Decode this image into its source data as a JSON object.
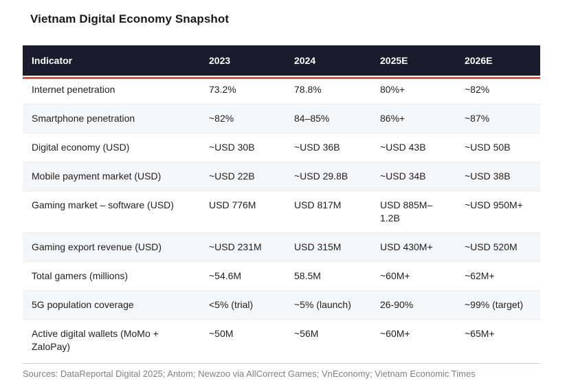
{
  "title": "Vietnam Digital Economy Snapshot",
  "footer": {
    "sources": "Sources: DataReportal Digital 2025; Antom; Newzoo via AllCorrect Games; VnEconomy; Vietnam Economic Times"
  },
  "colors": {
    "header_bg": "#1b1b2e",
    "accent_red_dark": "#b04238",
    "accent_red_light": "#e2695e",
    "stripe_row": "#f5f6f8"
  },
  "chart_data": {
    "type": "table",
    "title": "Vietnam Digital Economy Snapshot",
    "columns": [
      "Indicator",
      "2023",
      "2024",
      "2025E",
      "2026E"
    ],
    "rows": [
      [
        "Internet penetration",
        "73.2%",
        "78.8%",
        "80%+",
        "~82%"
      ],
      [
        "Smartphone penetration",
        "~82%",
        "84–85%",
        "86%+",
        "~87%"
      ],
      [
        "Digital economy (USD)",
        "~USD 30B",
        "~USD 36B",
        "~USD 43B",
        "~USD 50B"
      ],
      [
        "Mobile payment market (USD)",
        "~USD 22B",
        "~USD 29.8B",
        "~USD 34B",
        "~USD 38B"
      ],
      [
        "Gaming market – software (USD)",
        "USD 776M",
        "USD 817M",
        "USD 885M–1.2B",
        "~USD 950M+"
      ],
      [
        "Gaming export revenue (USD)",
        "~USD 231M",
        "USD 315M",
        "USD 430M+",
        "~USD 520M"
      ],
      [
        "Total gamers (millions)",
        "~54.6M",
        "58.5M",
        "~60M+",
        "~62M+"
      ],
      [
        "5G population coverage",
        "<5% (trial)",
        "~5% (launch)",
        "26-90%",
        "~99% (target)"
      ],
      [
        "Active digital wallets (MoMo + ZaloPay)",
        "~50M",
        "~56M",
        "~60M+",
        "~65M+"
      ]
    ]
  }
}
